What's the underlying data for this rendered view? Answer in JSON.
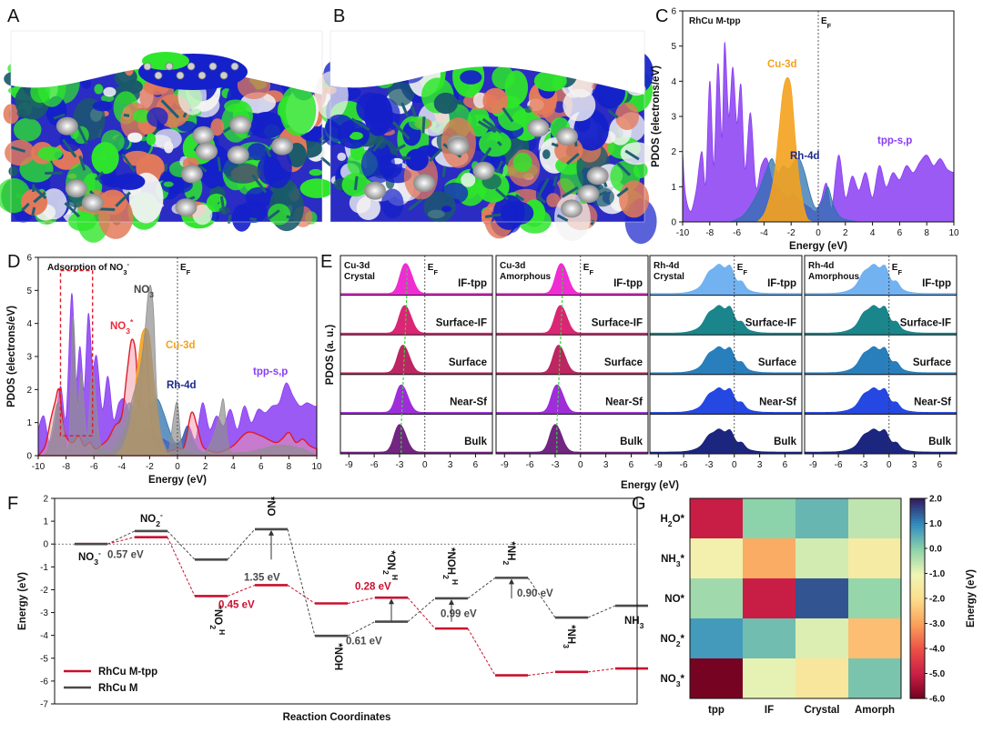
{
  "panel_labels": [
    "A",
    "B",
    "C",
    "D",
    "E",
    "F",
    "G"
  ],
  "colors": {
    "tpp": "#8a3df2",
    "cu": "#f4a21d",
    "rh": "#2e72b0",
    "no3_gray": "#8f8f8f",
    "no3_red": "#ea2a3a",
    "iso_blue": "#1420c9",
    "iso_green": "#2ee62b",
    "rhcu_mtpp": "#c8102e",
    "rhcu_m": "#4a4a4a"
  },
  "renders": {
    "A": {
      "description_icon": "isosurface-slab-with-molecule"
    },
    "B": {
      "description_icon": "isosurface-slab"
    }
  },
  "chart_data": [
    {
      "panel": "C",
      "type": "area",
      "title": "RhCu M-tpp",
      "xlabel": "Energy (eV)",
      "ylabel": "PDOS (electrons/eV)",
      "xlim": [
        -10,
        10
      ],
      "ylim": [
        0,
        6
      ],
      "xticks": [
        "-10",
        "-8",
        "-6",
        "-4",
        "-2",
        "0",
        "2",
        "4",
        "6",
        "8",
        "10"
      ],
      "yticks": [
        "0",
        "1",
        "2",
        "3",
        "4",
        "5",
        "6"
      ],
      "ef_label": "E",
      "ef_sub": "F",
      "series": [
        {
          "name": "tpp-s,p",
          "x": [
            -10,
            -9.8,
            -9.4,
            -9.0,
            -8.6,
            -8.3,
            -8.0,
            -7.7,
            -7.4,
            -7.1,
            -6.9,
            -6.6,
            -6.3,
            -6.0,
            -5.7,
            -5.4,
            -5.0,
            -4.6,
            -4.2,
            -3.8,
            -3.4,
            -3.0,
            -2.6,
            -2.2,
            -1.8,
            -1.4,
            -1.0,
            -0.6,
            -0.2,
            0.2,
            0.6,
            1.0,
            1.5,
            2.0,
            2.5,
            3.0,
            3.5,
            4.0,
            4.5,
            5.0,
            5.5,
            6.0,
            6.5,
            7.0,
            7.5,
            8.0,
            8.5,
            9.0,
            9.5,
            10
          ],
          "values": [
            2.0,
            0.8,
            0.3,
            0.9,
            2.0,
            1.1,
            4.0,
            1.6,
            4.5,
            2.4,
            5.1,
            3.0,
            4.4,
            2.8,
            3.9,
            1.5,
            3.1,
            1.0,
            1.6,
            1.8,
            1.2,
            1.0,
            0.8,
            0.7,
            0.8,
            0.6,
            0.5,
            0.4,
            0.3,
            0.6,
            1.1,
            0.4,
            1.9,
            0.7,
            1.3,
            0.9,
            1.4,
            0.7,
            1.6,
            1.0,
            1.4,
            1.2,
            1.6,
            1.4,
            1.7,
            1.9,
            1.6,
            1.8,
            1.5,
            1.4
          ]
        },
        {
          "name": "Cu-3d",
          "x": [
            -4.5,
            -3.9,
            -3.3,
            -2.9,
            -2.6,
            -2.3,
            -2.0,
            -1.7,
            -1.4,
            -1.1,
            -0.8,
            -0.4
          ],
          "values": [
            0.0,
            0.3,
            1.2,
            2.6,
            3.7,
            4.1,
            3.8,
            2.4,
            1.2,
            0.5,
            0.1,
            0.0
          ]
        },
        {
          "name": "Rh-4d",
          "x": [
            -6.5,
            -5.5,
            -4.5,
            -3.8,
            -3.4,
            -3.0,
            -2.6,
            -2.2,
            -1.8,
            -1.4,
            -1.0,
            -0.6,
            -0.2,
            0.3,
            0.7,
            1.1,
            1.6,
            2.2,
            3.0
          ],
          "values": [
            0.0,
            0.2,
            0.8,
            1.5,
            1.8,
            1.4,
            1.6,
            1.5,
            1.7,
            1.8,
            1.4,
            0.8,
            0.4,
            0.6,
            1.0,
            0.5,
            0.15,
            0.05,
            0.0
          ]
        }
      ]
    },
    {
      "panel": "D",
      "type": "area",
      "title": "Adsorption of NO",
      "title_sub": "3",
      "title_sup": "-",
      "xlabel": "Energy (eV)",
      "ylabel": "PDOS (electrons/eV)",
      "xlim": [
        -10,
        10
      ],
      "ylim": [
        0,
        6
      ],
      "xticks": [
        "-10",
        "-8",
        "-6",
        "-4",
        "-2",
        "0",
        "2",
        "4",
        "6",
        "8",
        "10"
      ],
      "yticks": [
        "0",
        "1",
        "2",
        "3",
        "4",
        "5",
        "6"
      ],
      "ef_label": "E",
      "ef_sub": "F",
      "no3_gray_label": "NO",
      "no3_gray_sub": "3",
      "no3_red_label": "NO",
      "no3_red_sub": "3",
      "no3_red_sup": "*",
      "series": [
        {
          "name": "tpp-s,p",
          "x": [
            -10,
            -9.6,
            -9.2,
            -8.8,
            -8.4,
            -8.0,
            -7.6,
            -7.3,
            -7.0,
            -6.7,
            -6.4,
            -6.1,
            -5.8,
            -5.4,
            -5.0,
            -4.6,
            -4.2,
            -3.8,
            -3.4,
            -3.0,
            -2.6,
            -2.2,
            -1.8,
            -1.4,
            -1.0,
            -0.6,
            -0.2,
            0.3,
            0.8,
            1.3,
            1.8,
            2.3,
            2.8,
            3.3,
            3.8,
            4.3,
            4.8,
            5.3,
            5.8,
            6.3,
            6.8,
            7.3,
            7.8,
            8.3,
            8.8,
            9.3,
            9.8,
            10
          ],
          "values": [
            0.8,
            1.2,
            0.4,
            1.0,
            2.1,
            1.2,
            4.9,
            2.3,
            3.3,
            2.0,
            4.3,
            2.7,
            3.0,
            1.4,
            2.4,
            1.1,
            1.6,
            1.7,
            1.2,
            1.0,
            0.9,
            0.8,
            0.7,
            0.6,
            0.5,
            0.4,
            0.35,
            0.5,
            0.9,
            0.5,
            1.6,
            0.8,
            1.2,
            0.9,
            1.4,
            0.8,
            1.5,
            1.0,
            1.4,
            1.3,
            1.5,
            1.6,
            2.2,
            1.8,
            1.5,
            1.6,
            1.5,
            1.5
          ]
        },
        {
          "name": "Cu-3d",
          "x": [
            -4.5,
            -3.9,
            -3.3,
            -2.9,
            -2.6,
            -2.3,
            -2.0,
            -1.7,
            -1.4,
            -1.1,
            -0.8,
            -0.4
          ],
          "values": [
            0.0,
            0.3,
            1.2,
            2.6,
            3.6,
            3.85,
            3.6,
            2.3,
            1.2,
            0.5,
            0.1,
            0.0
          ]
        },
        {
          "name": "Rh-4d",
          "x": [
            -6.5,
            -5.5,
            -4.5,
            -3.8,
            -3.4,
            -3.0,
            -2.6,
            -2.2,
            -1.8,
            -1.4,
            -1.0,
            -0.6,
            -0.2,
            0.3,
            0.7,
            1.1,
            1.6,
            2.2,
            3.0
          ],
          "values": [
            0.0,
            0.2,
            0.8,
            1.4,
            1.6,
            1.3,
            1.5,
            1.4,
            1.6,
            1.7,
            1.3,
            0.8,
            0.4,
            0.5,
            0.9,
            0.5,
            0.15,
            0.05,
            0.0
          ]
        },
        {
          "name": "NO3- (free)",
          "x": [
            -10,
            -9.4,
            -9.0,
            -8.6,
            -8.2,
            -7.8,
            -7.5,
            -7.2,
            -6.9,
            -6.5,
            -6.1,
            -5.6,
            -5.0,
            -4.4,
            -3.8,
            -3.2,
            -2.8,
            -2.4,
            -2.1,
            -1.9,
            -1.7,
            -1.5,
            -1.2,
            -0.9,
            -0.6,
            -0.3,
            0.0,
            0.3,
            0.7,
            1.2,
            1.8,
            2.4,
            3.0,
            3.3,
            3.6,
            3.9,
            4.4,
            5.0,
            6.0,
            7.0,
            8.0,
            9.0,
            10
          ],
          "values": [
            0.0,
            0.1,
            0.8,
            1.6,
            0.9,
            0.3,
            4.2,
            1.5,
            2.5,
            0.6,
            2.6,
            0.5,
            0.1,
            0.3,
            0.8,
            1.8,
            2.4,
            3.5,
            4.9,
            5.1,
            4.2,
            2.0,
            0.7,
            0.3,
            0.2,
            1.1,
            1.6,
            0.3,
            0.15,
            0.1,
            0.05,
            0.4,
            1.2,
            1.7,
            0.5,
            0.1,
            0.1,
            0.1,
            0.2,
            0.3,
            0.3,
            0.2,
            0.0
          ]
        },
        {
          "name": "NO3* (adsorbed)",
          "x": [
            -10,
            -9.5,
            -9.1,
            -8.8,
            -8.5,
            -8.2,
            -7.9,
            -7.5,
            -7.1,
            -6.7,
            -6.3,
            -5.9,
            -5.5,
            -5.0,
            -4.5,
            -4.0,
            -3.6,
            -3.3,
            -3.0,
            -2.8,
            -2.6,
            -2.3,
            -2.0,
            -1.7,
            -1.3,
            -0.9,
            -0.5,
            0.0,
            0.5,
            1.0,
            1.4,
            1.8,
            2.3,
            3.0,
            4.0,
            5.0,
            6.0,
            7.0,
            7.5,
            8.0,
            8.5,
            9.0,
            9.5,
            10
          ],
          "values": [
            0.0,
            0.3,
            1.1,
            1.6,
            2.0,
            0.9,
            0.5,
            0.4,
            0.6,
            0.3,
            0.4,
            0.2,
            0.3,
            0.5,
            0.9,
            1.2,
            2.6,
            3.5,
            3.1,
            1.5,
            2.4,
            3.7,
            1.8,
            0.5,
            0.2,
            0.1,
            0.15,
            0.2,
            0.3,
            1.3,
            0.9,
            0.3,
            0.15,
            0.1,
            0.3,
            0.7,
            0.6,
            0.4,
            0.5,
            0.7,
            0.4,
            0.5,
            0.3,
            0.2
          ]
        }
      ]
    },
    {
      "panel": "E",
      "type": "area",
      "xlabel": "Energy (eV)",
      "ylabel": "PDOS (a. u.)",
      "xlim": [
        -10,
        8
      ],
      "xticks": [
        "-9",
        "-6",
        "-3",
        "0",
        "3",
        "6"
      ],
      "ef_label": "E",
      "ef_sub": "F",
      "layers": [
        "IF-tpp",
        "Surface-IF",
        "Surface",
        "Near-Sf",
        "Bulk"
      ],
      "subpanels": [
        {
          "title": "Cu-3d",
          "subtitle": "Crystal",
          "colors": [
            "#ee22d0",
            "#d81a6e",
            "#b81a5a",
            "#9a22d8",
            "#6a1a7a"
          ],
          "d_band_centers": [
            -2.1,
            -2.2,
            -2.4,
            -2.6,
            -2.8
          ]
        },
        {
          "title": "Cu-3d",
          "subtitle": "Amorphous",
          "colors": [
            "#ee22d0",
            "#d81a6e",
            "#b81a5a",
            "#9a22d8",
            "#6a1a7a"
          ],
          "d_band_centers": [
            -2.1,
            -2.2,
            -2.4,
            -2.6,
            -2.8
          ]
        },
        {
          "title": "Rh-4d",
          "subtitle": "Crystal",
          "colors": [
            "#6aaef0",
            "#0e7f86",
            "#1e78b8",
            "#1a3ee0",
            "#101a78"
          ]
        },
        {
          "title": "Rh-4d",
          "subtitle": "Amorphous",
          "colors": [
            "#6aaef0",
            "#0e7f86",
            "#1e78b8",
            "#1a3ee0",
            "#101a78"
          ]
        }
      ]
    },
    {
      "panel": "F",
      "type": "line",
      "xlabel": "Reaction Coordinates",
      "ylabel": "Energy (eV)",
      "ylim": [
        -7,
        2
      ],
      "yticks": [
        "-7",
        "-6",
        "-5",
        "-4",
        "-3",
        "-2",
        "-1",
        "0",
        "1",
        "2"
      ],
      "legend": [
        "RhCu M-tpp",
        "RhCu M"
      ],
      "series": [
        {
          "name": "RhCu M-tpp",
          "x": [
            1,
            2,
            3,
            4,
            5,
            6,
            7,
            8,
            9,
            10
          ],
          "values": [
            0.0,
            0.3,
            -2.28,
            -1.8,
            -2.6,
            -2.35,
            -3.7,
            -5.75,
            -5.6,
            -5.45
          ]
        },
        {
          "name": "RhCu M",
          "x": [
            1,
            2,
            3,
            4,
            5,
            6,
            7,
            8,
            9,
            10
          ],
          "values": [
            0.0,
            0.57,
            -0.68,
            0.65,
            -4.02,
            -3.4,
            -2.38,
            -1.48,
            -3.22,
            -2.7
          ]
        }
      ],
      "species_labels": [
        {
          "text": "NO",
          "sub": "3",
          "sup": "-"
        },
        {
          "text": "NO",
          "sub": "2",
          "sup": "-"
        },
        {
          "text": "*NO",
          "sub": "2",
          "sup": "H"
        },
        {
          "text": "*NO"
        },
        {
          "text": "*NOH"
        },
        {
          "text": "*ON",
          "sub": "2",
          "sup": "H"
        },
        {
          "text": "*NOH",
          "sub": "2",
          "sup": "H"
        },
        {
          "text": "*NH",
          "sub": "2",
          "sup": ""
        },
        {
          "text": "*NH",
          "sub": "3",
          "sup": ""
        },
        {
          "text": "NH",
          "sub": "3"
        }
      ],
      "annotations": [
        {
          "text": "0.57 eV",
          "color": "#4a4a4a"
        },
        {
          "text": "1.35 eV",
          "color": "#4a4a4a"
        },
        {
          "text": "0.45 eV",
          "color": "#c8102e"
        },
        {
          "text": "0.28 eV",
          "color": "#c8102e"
        },
        {
          "text": "0.61 eV",
          "color": "#4a4a4a"
        },
        {
          "text": "0.99 eV",
          "color": "#4a4a4a"
        },
        {
          "text": "0.90 eV",
          "color": "#4a4a4a"
        }
      ]
    },
    {
      "panel": "G",
      "type": "heatmap",
      "columns": [
        "tpp",
        "IF",
        "Crystal",
        "Amorph"
      ],
      "rows": [
        {
          "label": "H",
          "sub": "2",
          "tail": "O*"
        },
        {
          "label": "NH",
          "sub": "3",
          "tail": "*"
        },
        {
          "label": "NO*",
          "sub": "",
          "tail": ""
        },
        {
          "label": "NO",
          "sub": "2",
          "tail": "*"
        },
        {
          "label": "NO",
          "sub": "3",
          "tail": "*"
        }
      ],
      "values": [
        [
          -5.0,
          0.0,
          0.4,
          -0.5
        ],
        [
          -1.2,
          -2.8,
          -0.7,
          -1.4
        ],
        [
          -0.2,
          -5.0,
          1.5,
          -0.1
        ],
        [
          0.8,
          0.3,
          -0.8,
          -2.5
        ],
        [
          -5.9,
          -0.9,
          -1.6,
          0.2
        ]
      ],
      "colorbar_label": "Energy (eV)",
      "colorbar_range": [
        -6.0,
        2.0
      ],
      "colorbar_ticks": [
        "2.0",
        "1.0",
        "0.0",
        "-1.0",
        "-2.0",
        "-3.0",
        "-4.0",
        "-5.0",
        "-6.0"
      ]
    }
  ]
}
